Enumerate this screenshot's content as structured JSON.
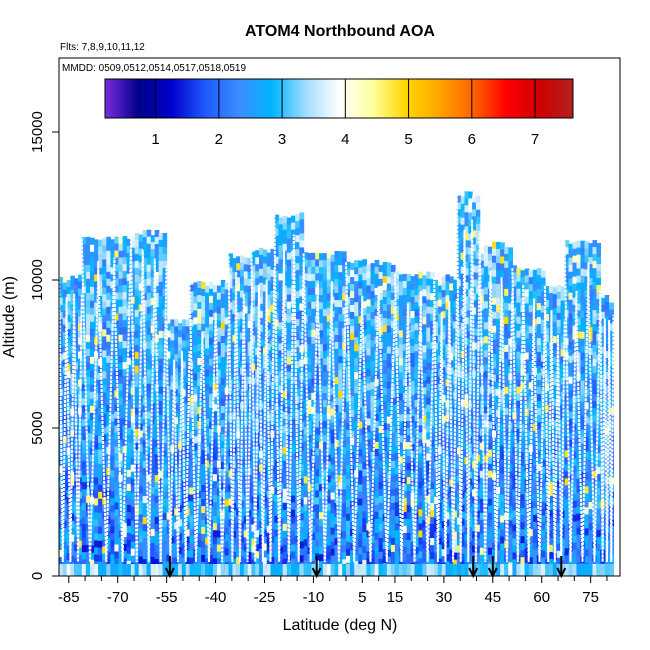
{
  "chart_data": {
    "type": "heatmap",
    "title": "ATOM4 Northbound AOA",
    "subtitle_flights": "Flts: 7,8,9,10,11,12",
    "subtitle_dates": "MMDD: 0509,0512,0514,0517,0518,0519",
    "xlabel": "Latitude (deg N)",
    "ylabel": "Altitude (m)",
    "xlim": [
      -88,
      84
    ],
    "ylim": [
      0,
      17500
    ],
    "x_ticks": [
      -85,
      -70,
      -55,
      -40,
      -25,
      -10,
      5,
      15,
      30,
      45,
      60,
      75
    ],
    "x_minor_ticks": [
      -80,
      -75,
      -65,
      -60,
      -50,
      -45,
      -35,
      -30,
      -20,
      -15,
      -5,
      0,
      10,
      20,
      25,
      35,
      40,
      50,
      55,
      65,
      70,
      80
    ],
    "y_ticks": [
      0,
      5000,
      10000,
      15000
    ],
    "colorbar": {
      "min": 0.2,
      "max": 7.6,
      "ticks": [
        1,
        2,
        3,
        4,
        5,
        6,
        7
      ],
      "colors": [
        "#7b2be0",
        "#00008b",
        "#0000cd",
        "#1e5aff",
        "#3c8cff",
        "#00b4ff",
        "#a0dcff",
        "#ffffff",
        "#ffffa0",
        "#ffd700",
        "#ffa500",
        "#ff6400",
        "#ff0000",
        "#cd0000",
        "#b22222"
      ]
    },
    "markers_lat": [
      -54,
      -9,
      39,
      45,
      66
    ],
    "profiles": [
      {
        "lat0": -88,
        "lat1": -81,
        "alt_top": 10100
      },
      {
        "lat0": -81,
        "lat1": -66,
        "alt_top": 11400
      },
      {
        "lat0": -66,
        "lat1": -55,
        "alt_top": 11600
      },
      {
        "lat0": -55,
        "lat1": -48,
        "alt_top": 8600
      },
      {
        "lat0": -48,
        "lat1": -36,
        "alt_top": 9900
      },
      {
        "lat0": -36,
        "lat1": -29,
        "alt_top": 10800
      },
      {
        "lat0": -29,
        "lat1": -22,
        "alt_top": 11000
      },
      {
        "lat0": -22,
        "lat1": -13,
        "alt_top": 12200
      },
      {
        "lat0": -13,
        "lat1": 0,
        "alt_top": 10900
      },
      {
        "lat0": 0,
        "lat1": 15,
        "alt_top": 10600
      },
      {
        "lat0": 15,
        "lat1": 27,
        "alt_top": 10200
      },
      {
        "lat0": 27,
        "lat1": 34,
        "alt_top": 10100
      },
      {
        "lat0": 34,
        "lat1": 41,
        "alt_top": 12900
      },
      {
        "lat0": 41,
        "lat1": 51,
        "alt_top": 11200
      },
      {
        "lat0": 51,
        "lat1": 61,
        "alt_top": 10400
      },
      {
        "lat0": 61,
        "lat1": 67,
        "alt_top": 9800
      },
      {
        "lat0": 67,
        "lat1": 78,
        "alt_top": 11300
      },
      {
        "lat0": 78,
        "lat1": 82,
        "alt_top": 9500
      }
    ]
  }
}
